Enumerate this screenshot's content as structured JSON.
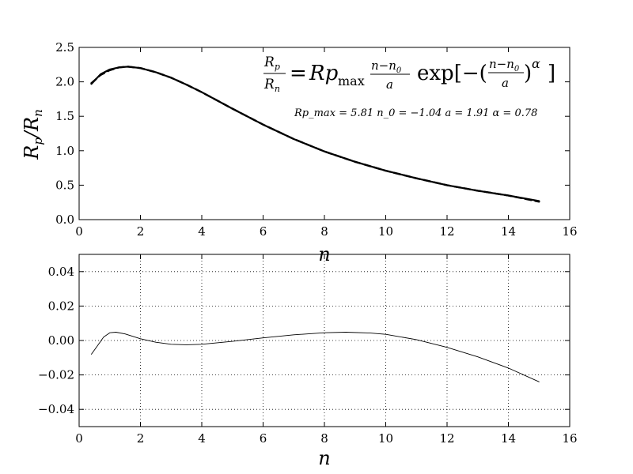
{
  "chart_data": [
    {
      "type": "line",
      "xlabel": "n",
      "ylabel": "R_p / R_n",
      "xlim": [
        0,
        16
      ],
      "ylim": [
        0,
        2.5
      ],
      "xticks": [
        0,
        2,
        4,
        6,
        8,
        10,
        12,
        14,
        16
      ],
      "yticks": [
        0.0,
        0.5,
        1.0,
        1.5,
        2.0,
        2.5
      ],
      "xtick_labels": [
        "0",
        "2",
        "4",
        "6",
        "8",
        "10",
        "12",
        "14",
        "16"
      ],
      "ytick_labels": [
        "0.0",
        "0.5",
        "1.0",
        "1.5",
        "2.0",
        "2.5"
      ],
      "grid": false,
      "annotation": {
        "formula_lhs_num": "R",
        "formula_lhs_num_sub": "p",
        "formula_lhs_den": "R",
        "formula_lhs_den_sub": "n",
        "formula_eq": "=",
        "formula_rp": "Rp",
        "formula_max": "max",
        "formula_frac_num": "n−n",
        "formula_frac_num_sub": "0",
        "formula_frac_den": "a",
        "formula_exp": "exp[−(",
        "formula_exp_close": ")",
        "formula_alpha": "α",
        "formula_bracket": "]",
        "params_text": "Rp_max = 5.81  n_0 = −1.04  a = 1.91  α = 0.78",
        "params": {
          "Rp_max": 5.81,
          "n0": -1.04,
          "a": 1.91,
          "alpha": 0.78
        }
      },
      "series": [
        {
          "style": "solid-thick",
          "x": [
            0.4,
            0.7,
            1.0,
            1.3,
            1.6,
            2.0,
            2.5,
            3.0,
            3.5,
            4.0,
            5.0,
            6.0,
            7.0,
            8.0,
            9.0,
            10.0,
            11.0,
            12.0,
            13.0,
            14.0,
            15.0
          ],
          "y": [
            1.97,
            2.11,
            2.18,
            2.21,
            2.22,
            2.2,
            2.14,
            2.06,
            1.96,
            1.85,
            1.61,
            1.38,
            1.17,
            0.99,
            0.84,
            0.71,
            0.6,
            0.5,
            0.42,
            0.35,
            0.27
          ]
        },
        {
          "style": "dashed",
          "x": [
            0.4,
            0.7,
            1.0,
            1.3,
            1.6,
            2.0,
            2.5,
            3.0,
            3.5,
            4.0,
            5.0,
            6.0,
            7.0,
            8.0,
            9.0,
            10.0,
            11.0,
            12.0,
            13.0,
            14.0,
            15.0
          ],
          "y": [
            1.98,
            2.1,
            2.17,
            2.21,
            2.22,
            2.2,
            2.14,
            2.06,
            1.96,
            1.85,
            1.61,
            1.38,
            1.17,
            0.99,
            0.84,
            0.71,
            0.6,
            0.5,
            0.42,
            0.35,
            0.26
          ]
        }
      ]
    },
    {
      "type": "line",
      "xlabel": "n",
      "ylabel": "",
      "xlim": [
        0,
        16
      ],
      "ylim": [
        -0.05,
        0.05
      ],
      "xticks": [
        0,
        2,
        4,
        6,
        8,
        10,
        12,
        14,
        16
      ],
      "yticks": [
        -0.04,
        -0.02,
        0.0,
        0.02,
        0.04
      ],
      "xtick_labels": [
        "0",
        "2",
        "4",
        "6",
        "8",
        "10",
        "12",
        "14",
        "16"
      ],
      "ytick_labels": [
        "−0.04",
        "−0.02",
        "0.00",
        "0.02",
        "0.04"
      ],
      "grid": true,
      "series": [
        {
          "style": "solid-thin",
          "x": [
            0.4,
            0.6,
            0.8,
            1.0,
            1.2,
            1.5,
            2.0,
            2.5,
            3.0,
            3.5,
            4.0,
            5.0,
            6.0,
            7.0,
            8.0,
            8.7,
            9.5,
            10.0,
            11.0,
            12.0,
            13.0,
            14.0,
            15.0
          ],
          "y": [
            -0.008,
            -0.003,
            0.002,
            0.0045,
            0.0048,
            0.0038,
            0.001,
            -0.001,
            -0.0022,
            -0.0025,
            -0.0022,
            -0.0005,
            0.0015,
            0.0033,
            0.0045,
            0.0048,
            0.0043,
            0.0036,
            0.0005,
            -0.004,
            -0.0095,
            -0.016,
            -0.024
          ]
        }
      ]
    }
  ]
}
